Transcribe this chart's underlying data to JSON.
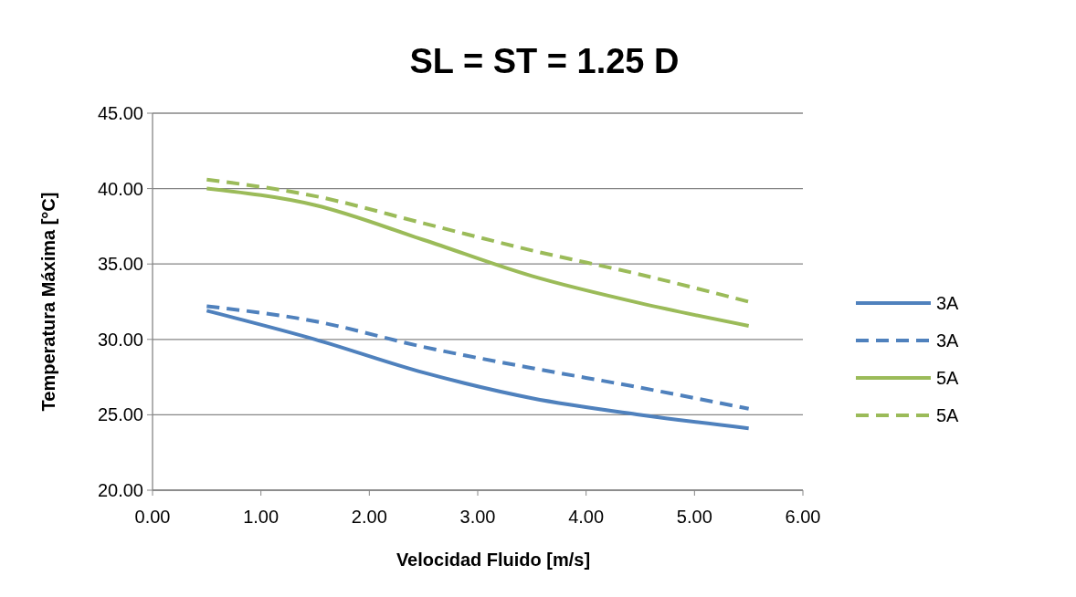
{
  "chart_data": {
    "type": "line",
    "title": "SL = ST = 1.25 D",
    "xlabel": "Velocidad Fluido [m/s]",
    "ylabel": "Temperatura Máxima [°C]",
    "x": [
      0.5,
      1.5,
      2.5,
      3.5,
      4.5,
      5.5
    ],
    "series": [
      {
        "name": "3A",
        "color": "#4f81bd",
        "line_style": "solid",
        "values": [
          31.9,
          30.0,
          27.8,
          26.1,
          25.0,
          24.1
        ]
      },
      {
        "name": "3A",
        "color": "#4f81bd",
        "line_style": "dashed",
        "values": [
          32.2,
          31.2,
          29.5,
          28.1,
          26.8,
          25.4
        ]
      },
      {
        "name": "5A",
        "color": "#9bbb59",
        "line_style": "solid",
        "values": [
          40.0,
          38.9,
          36.6,
          34.2,
          32.4,
          30.9
        ]
      },
      {
        "name": "5A",
        "color": "#9bbb59",
        "line_style": "dashed",
        "values": [
          40.6,
          39.5,
          37.7,
          35.9,
          34.3,
          32.5
        ]
      }
    ],
    "xlim": [
      0,
      6
    ],
    "xticks": [
      {
        "value": 0,
        "label": "0.00"
      },
      {
        "value": 1,
        "label": "1.00"
      },
      {
        "value": 2,
        "label": "2.00"
      },
      {
        "value": 3,
        "label": "3.00"
      },
      {
        "value": 4,
        "label": "4.00"
      },
      {
        "value": 5,
        "label": "5.00"
      },
      {
        "value": 6,
        "label": "6.00"
      }
    ],
    "ylim": [
      20,
      45
    ],
    "yticks": [
      {
        "value": 20,
        "label": "20.00"
      },
      {
        "value": 25,
        "label": "25.00"
      },
      {
        "value": 30,
        "label": "30.00"
      },
      {
        "value": 35,
        "label": "35.00"
      },
      {
        "value": 40,
        "label": "40.00"
      },
      {
        "value": 45,
        "label": "45.00"
      }
    ],
    "grid": "y",
    "legend": "right",
    "marker": "none"
  }
}
